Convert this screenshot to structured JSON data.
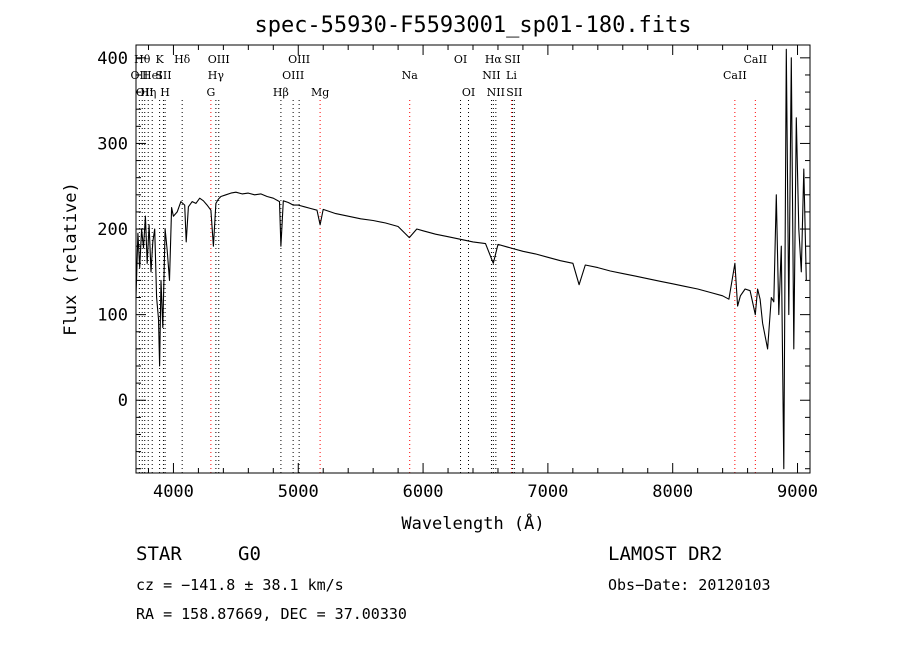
{
  "chart_data": {
    "type": "line",
    "title": "spec-55930-F5593001_sp01-180.fits",
    "xlabel": "Wavelength (Å)",
    "ylabel": "Flux (relative)",
    "xlim": [
      3700,
      9100
    ],
    "ylim": [
      -85,
      415
    ],
    "x_ticks": [
      4000,
      5000,
      6000,
      7000,
      8000,
      9000
    ],
    "y_ticks": [
      0,
      100,
      200,
      300,
      400
    ],
    "grid": false,
    "series": [
      {
        "x": [
          3700,
          3715,
          3730,
          3745,
          3760,
          3775,
          3790,
          3805,
          3820,
          3835,
          3850,
          3865,
          3880,
          3889,
          3900,
          3915,
          3933,
          3950,
          3968,
          3985,
          4000,
          4030,
          4060,
          4090,
          4102,
          4120,
          4150,
          4180,
          4210,
          4240,
          4270,
          4300,
          4320,
          4340,
          4360,
          4380,
          4420,
          4460,
          4500,
          4550,
          4600,
          4650,
          4700,
          4750,
          4800,
          4850,
          4861,
          4880,
          4920,
          4960,
          5000,
          5050,
          5100,
          5150,
          5175,
          5200,
          5300,
          5400,
          5500,
          5600,
          5700,
          5800,
          5890,
          5950,
          6000,
          6100,
          6200,
          6300,
          6400,
          6500,
          6563,
          6600,
          6700,
          6800,
          6900,
          7000,
          7100,
          7200,
          7250,
          7300,
          7400,
          7500,
          7600,
          7700,
          7800,
          7900,
          8000,
          8100,
          8200,
          8300,
          8400,
          8450,
          8498,
          8520,
          8542,
          8580,
          8620,
          8662,
          8680,
          8700,
          8720,
          8760,
          8790,
          8810,
          8830,
          8850,
          8870,
          8890,
          8910,
          8930,
          8950,
          8970,
          8990,
          9010,
          9030,
          9050,
          9070
        ],
        "y": [
          120,
          195,
          155,
          200,
          178,
          215,
          160,
          205,
          150,
          185,
          200,
          120,
          95,
          40,
          140,
          85,
          200,
          175,
          140,
          225,
          215,
          220,
          232,
          228,
          185,
          226,
          232,
          230,
          236,
          233,
          228,
          222,
          180,
          230,
          235,
          238,
          240,
          242,
          243,
          241,
          242,
          240,
          241,
          238,
          236,
          232,
          180,
          233,
          231,
          228,
          228,
          226,
          224,
          222,
          205,
          223,
          218,
          215,
          212,
          210,
          207,
          203,
          190,
          200,
          198,
          194,
          191,
          188,
          185,
          183,
          160,
          182,
          178,
          174,
          171,
          167,
          163,
          160,
          135,
          158,
          155,
          151,
          148,
          145,
          142,
          139,
          136,
          133,
          130,
          126,
          122,
          118,
          160,
          110,
          122,
          130,
          128,
          100,
          130,
          118,
          90,
          60,
          120,
          115,
          240,
          100,
          180,
          -80,
          410,
          100,
          400,
          60,
          330,
          200,
          150,
          270,
          140
        ]
      }
    ],
    "line_labels": [
      {
        "wl": 3727,
        "text": "OII",
        "row": 2,
        "color": "#000000"
      },
      {
        "wl": 3750,
        "text": "Hθ",
        "row": 1,
        "color": "#000000"
      },
      {
        "wl": 3770,
        "text": "OII",
        "row": 3,
        "color": "#000000"
      },
      {
        "wl": 3798,
        "text": "Hη",
        "row": 3,
        "color": "#000000"
      },
      {
        "wl": 3830,
        "text": "HeI",
        "row": 2,
        "color": "#000000"
      },
      {
        "wl": 3889,
        "text": "K",
        "row": 1,
        "color": "#000000"
      },
      {
        "wl": 3920,
        "text": "SII",
        "row": 2,
        "color": "#000000"
      },
      {
        "wl": 3933,
        "text": "H",
        "row": 3,
        "color": "#000000"
      },
      {
        "wl": 4070,
        "text": "Hδ",
        "row": 1,
        "color": "#000000"
      },
      {
        "wl": 4300,
        "text": "G",
        "row": 3,
        "color": "#ff0000"
      },
      {
        "wl": 4340,
        "text": "Hγ",
        "row": 2,
        "color": "#000000"
      },
      {
        "wl": 4363,
        "text": "OIII",
        "row": 1,
        "color": "#000000"
      },
      {
        "wl": 4861,
        "text": "Hβ",
        "row": 3,
        "color": "#000000"
      },
      {
        "wl": 4959,
        "text": "OIII",
        "row": 2,
        "color": "#000000"
      },
      {
        "wl": 5007,
        "text": "OIII",
        "row": 1,
        "color": "#000000"
      },
      {
        "wl": 5175,
        "text": "Mg",
        "row": 3,
        "color": "#ff0000"
      },
      {
        "wl": 5893,
        "text": "Na",
        "row": 2,
        "color": "#ff0000"
      },
      {
        "wl": 6300,
        "text": "OI",
        "row": 1,
        "color": "#000000"
      },
      {
        "wl": 6364,
        "text": "OI",
        "row": 3,
        "color": "#000000"
      },
      {
        "wl": 6548,
        "text": "NII",
        "row": 2,
        "color": "#000000"
      },
      {
        "wl": 6563,
        "text": "Hα",
        "row": 1,
        "color": "#000000"
      },
      {
        "wl": 6583,
        "text": "NII",
        "row": 3,
        "color": "#000000"
      },
      {
        "wl": 6708,
        "text": "Li",
        "row": 2,
        "color": "#ff0000"
      },
      {
        "wl": 6716,
        "text": "SII",
        "row": 1,
        "color": "#000000"
      },
      {
        "wl": 6731,
        "text": "SII",
        "row": 3,
        "color": "#000000"
      },
      {
        "wl": 8498,
        "text": "CaII",
        "row": 2,
        "color": "#ff0000"
      },
      {
        "wl": 8662,
        "text": "CaII",
        "row": 1,
        "color": "#ff0000"
      }
    ]
  },
  "info": {
    "object_class": "STAR",
    "subclass": "G0",
    "survey": "LAMOST DR2",
    "cz": "cz = −141.8 ± 38.1 km/s",
    "obs_date": "Obs−Date: 20120103",
    "coords": "RA = 158.87669, DEC =  37.00330"
  }
}
